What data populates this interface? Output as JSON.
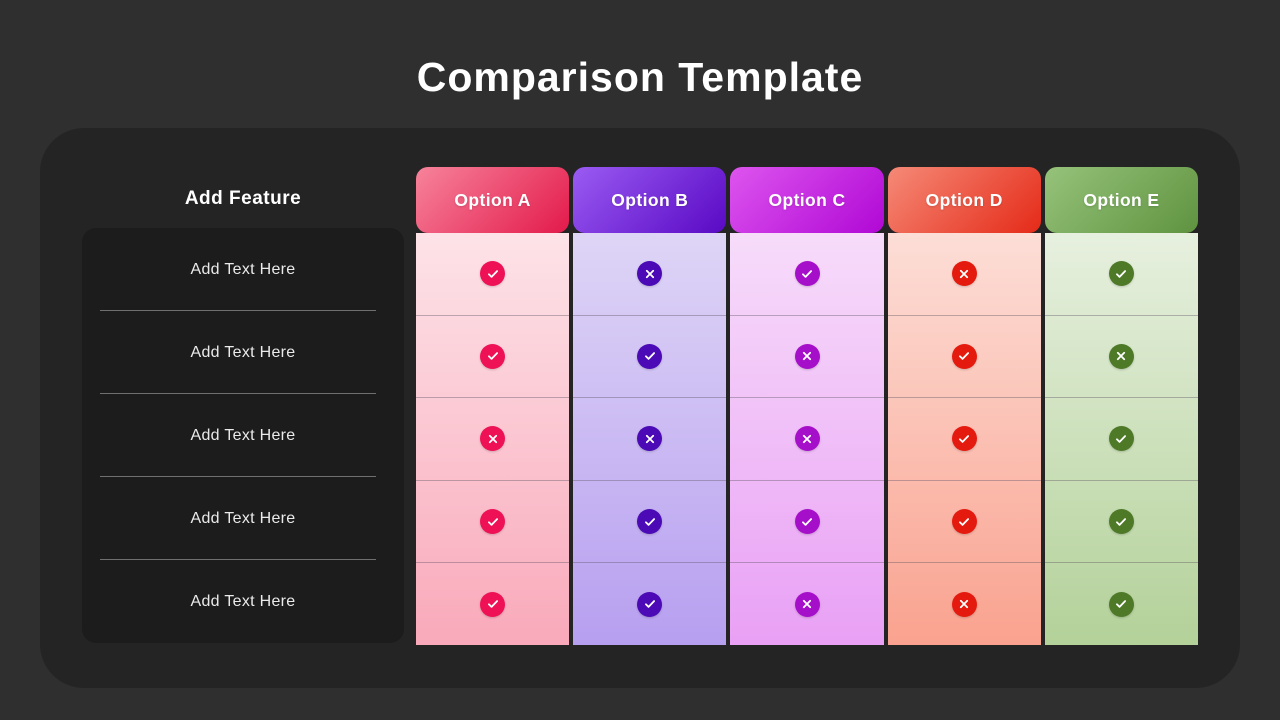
{
  "title": "Comparison Template",
  "feature_column": {
    "header": "Add Feature",
    "rows": [
      "Add Text Here",
      "Add Text Here",
      "Add Text Here",
      "Add Text Here",
      "Add Text Here"
    ]
  },
  "columns": [
    {
      "id": "option-a",
      "label": "Option A",
      "header_gradient": [
        "#f7839b",
        "#e31a4b"
      ],
      "body_gradient": [
        "#fde3e8",
        "#f9a9ba"
      ],
      "icon_color": "#ee1155"
    },
    {
      "id": "option-b",
      "label": "Option B",
      "header_gradient": [
        "#9a5bf2",
        "#5909c4"
      ],
      "body_gradient": [
        "#ded5f6",
        "#b79ff0"
      ],
      "icon_color": "#4b0ab5"
    },
    {
      "id": "option-c",
      "label": "Option C",
      "header_gradient": [
        "#dd55ee",
        "#b008d5"
      ],
      "body_gradient": [
        "#f7dcfa",
        "#e9a0f5"
      ],
      "icon_color": "#a60fca"
    },
    {
      "id": "option-d",
      "label": "Option D",
      "header_gradient": [
        "#f58a77",
        "#e52a18"
      ],
      "body_gradient": [
        "#fcded7",
        "#faa28f"
      ],
      "icon_color": "#e51a0e"
    },
    {
      "id": "option-e",
      "label": "Option E",
      "header_gradient": [
        "#96c37a",
        "#5f9340"
      ],
      "body_gradient": [
        "#e7f0df",
        "#b3d199"
      ],
      "icon_color": "#4e7a28"
    }
  ],
  "cells": [
    [
      "check",
      "cross",
      "check",
      "cross",
      "check"
    ],
    [
      "check",
      "check",
      "cross",
      "check",
      "cross"
    ],
    [
      "cross",
      "cross",
      "cross",
      "check",
      "check"
    ],
    [
      "check",
      "check",
      "check",
      "check",
      "check"
    ],
    [
      "check",
      "check",
      "cross",
      "cross",
      "check"
    ]
  ],
  "colors": {
    "background": "#2f2f2f",
    "panel": "#242424",
    "feature_box": "#1c1c1c",
    "title_text": "#ffffff"
  }
}
